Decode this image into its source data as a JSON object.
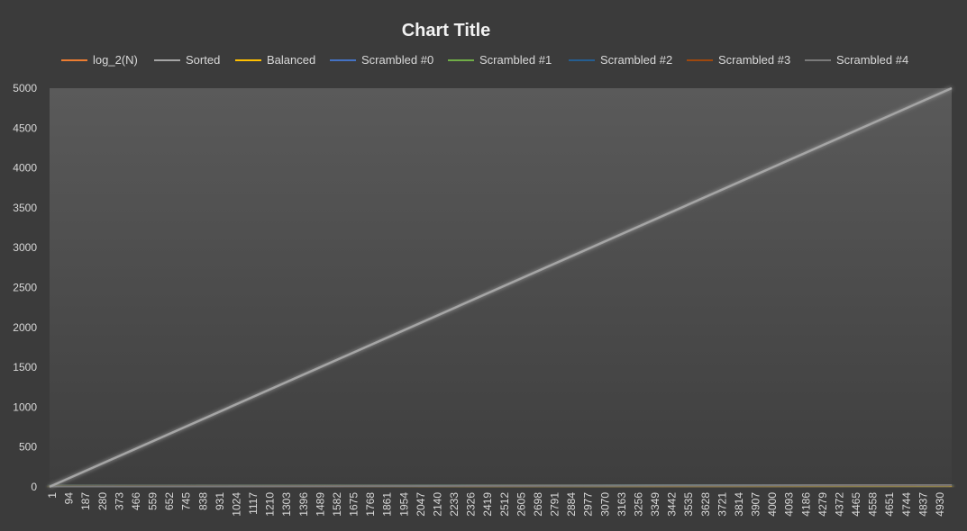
{
  "colors": {
    "background": "#3b3b3b",
    "plot_top": "#5a5a5a",
    "plot_bottom": "#3e3e3e",
    "text": "#d9d9d9",
    "title": "#f2f2f2"
  },
  "chart_data": {
    "type": "line",
    "title": "Chart Title",
    "xlabel": "",
    "ylabel": "",
    "ylim": [
      0,
      5000
    ],
    "y_ticks": [
      0,
      500,
      1000,
      1500,
      2000,
      2500,
      3000,
      3500,
      4000,
      4500,
      5000
    ],
    "x_range": [
      1,
      5000
    ],
    "x_tick_labels": [
      "1",
      "94",
      "187",
      "280",
      "373",
      "466",
      "559",
      "652",
      "745",
      "838",
      "931",
      "1024",
      "1117",
      "1210",
      "1303",
      "1396",
      "1489",
      "1582",
      "1675",
      "1768",
      "1861",
      "1954",
      "2047",
      "2140",
      "2233",
      "2326",
      "2419",
      "2512",
      "2605",
      "2698",
      "2791",
      "2884",
      "2977",
      "3070",
      "3163",
      "3256",
      "3349",
      "3442",
      "3535",
      "3628",
      "3721",
      "3814",
      "3907",
      "4000",
      "4093",
      "4186",
      "4279",
      "4372",
      "4465",
      "4558",
      "4651",
      "4744",
      "4837",
      "4930"
    ],
    "legend_position": "top",
    "grid": false,
    "series": [
      {
        "name": "log_2(N)",
        "color": "#ed7d31",
        "x": [
          1,
          5000
        ],
        "y": [
          0,
          12.3
        ]
      },
      {
        "name": "Sorted",
        "color": "#a5a5a5",
        "x": [
          1,
          5000
        ],
        "y": [
          1,
          5000
        ]
      },
      {
        "name": "Balanced",
        "color": "#ffc000",
        "x": [
          1,
          5000
        ],
        "y": [
          0,
          12
        ]
      },
      {
        "name": "Scrambled #0",
        "color": "#4472c4",
        "x": [
          1,
          5000
        ],
        "y": [
          0,
          25
        ]
      },
      {
        "name": "Scrambled #1",
        "color": "#70ad47",
        "x": [
          1,
          5000
        ],
        "y": [
          0,
          28
        ]
      },
      {
        "name": "Scrambled #2",
        "color": "#255e91",
        "x": [
          1,
          5000
        ],
        "y": [
          0,
          27
        ]
      },
      {
        "name": "Scrambled #3",
        "color": "#9e480e",
        "x": [
          1,
          5000
        ],
        "y": [
          0,
          26
        ]
      },
      {
        "name": "Scrambled #4",
        "color": "#7a7a7a",
        "x": [
          1,
          5000
        ],
        "y": [
          0,
          27
        ]
      }
    ]
  }
}
